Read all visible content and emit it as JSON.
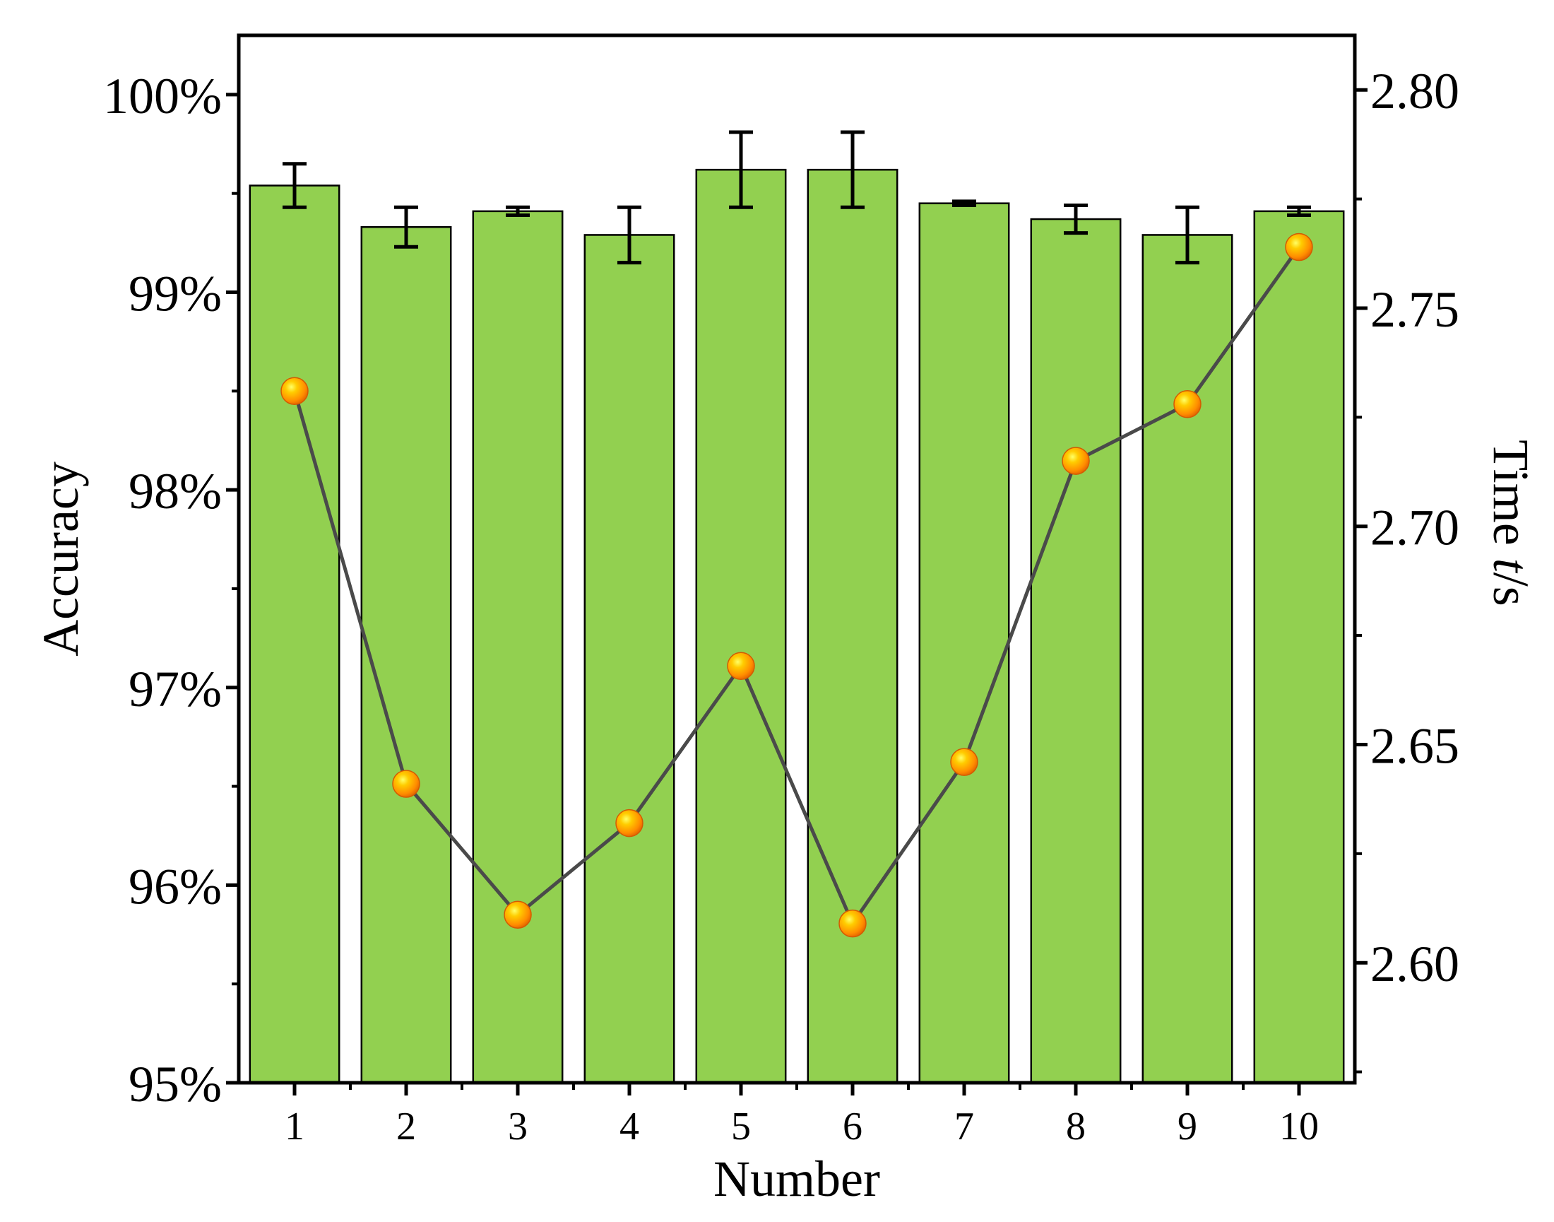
{
  "chart_data": {
    "type": "bar",
    "categories": [
      "1",
      "2",
      "3",
      "4",
      "5",
      "6",
      "7",
      "8",
      "9",
      "10"
    ],
    "xlabel": "Number",
    "ylabel": "Accuracy",
    "y2label_main": "Time ",
    "y2label_italic": "t",
    "y2label_unit": "/s",
    "ylim": [
      95,
      100.3
    ],
    "y2lim": [
      2.5725,
      2.8125
    ],
    "yticks": [
      95,
      96,
      97,
      98,
      99,
      100
    ],
    "ytick_labels": [
      "95%",
      "96%",
      "97%",
      "98%",
      "99%",
      "100%"
    ],
    "y2ticks": [
      2.6,
      2.65,
      2.7,
      2.75,
      2.8
    ],
    "y2tick_labels": [
      "2.60",
      "2.65",
      "2.70",
      "2.75",
      "2.80"
    ],
    "series": [
      {
        "type": "bar",
        "axis": "left",
        "values": [
          99.54,
          99.33,
          99.41,
          99.29,
          99.62,
          99.62,
          99.45,
          99.37,
          99.29,
          99.41
        ],
        "errors": [
          0.11,
          0.1,
          0.02,
          0.14,
          0.19,
          0.19,
          0.01,
          0.07,
          0.14,
          0.02
        ],
        "color": "#92d050"
      },
      {
        "type": "line",
        "axis": "right",
        "values": [
          2.731,
          2.641,
          2.611,
          2.632,
          2.668,
          2.609,
          2.646,
          2.715,
          2.728,
          2.764
        ],
        "color": "#ff9900",
        "line_color": "#4a4a4a"
      }
    ]
  }
}
